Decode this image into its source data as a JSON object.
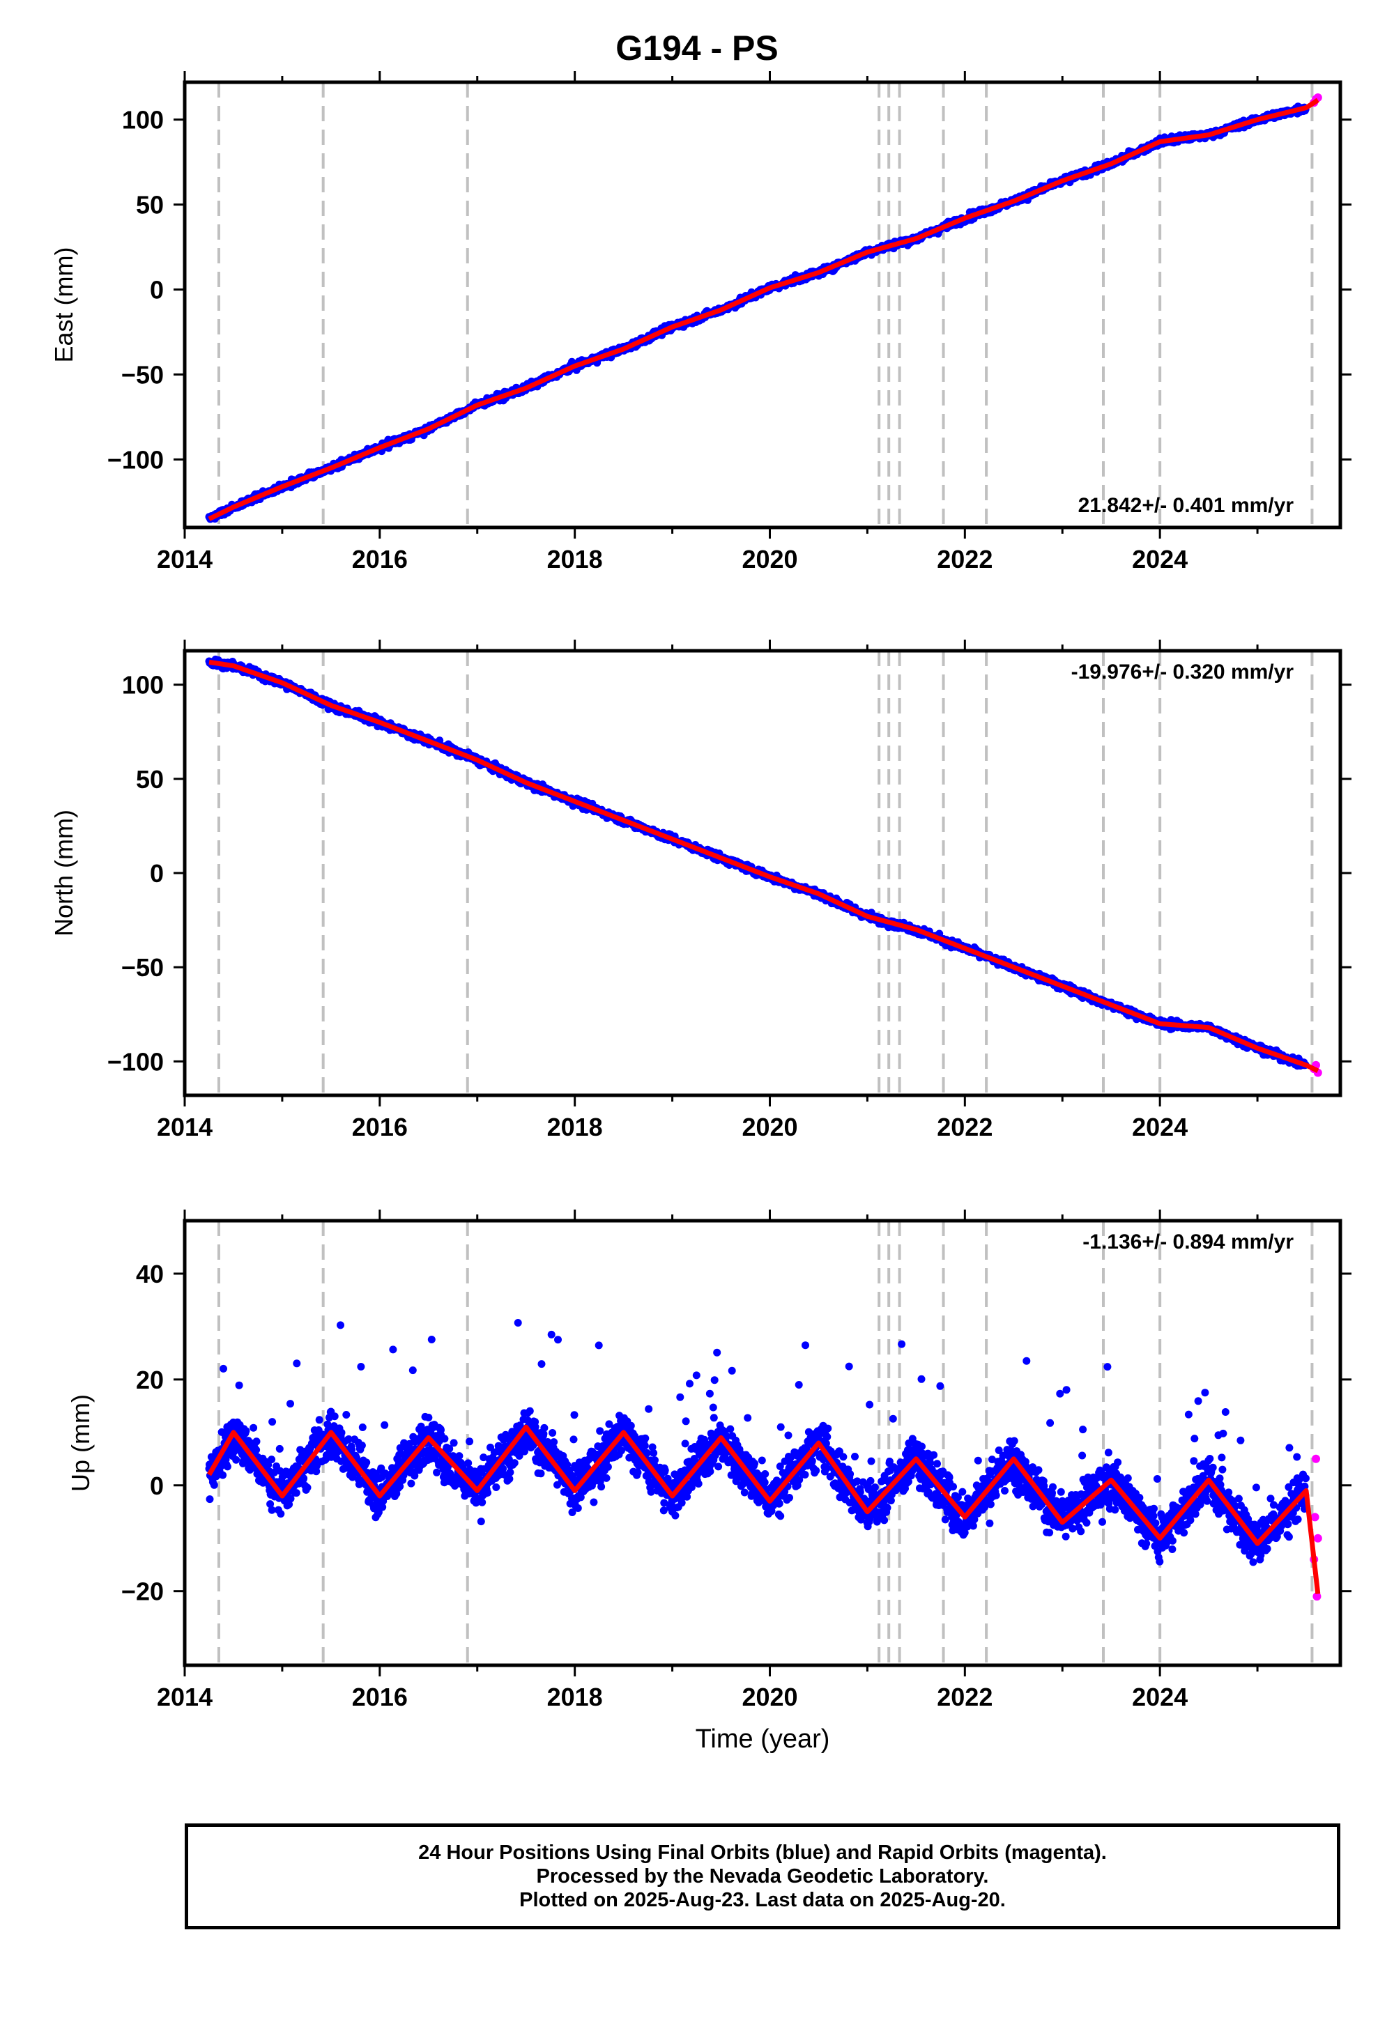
{
  "title": "G194 - PS",
  "footer": {
    "line1": "24 Hour Positions Using Final Orbits (blue) and Rapid Orbits (magenta).",
    "line2": "Processed by the Nevada Geodetic Laboratory.",
    "line3": "Plotted on 2025-Aug-23. Last data on 2025-Aug-20."
  },
  "colors": {
    "final_orbits": "#0000ff",
    "rapid_orbits": "#ff00ff",
    "model_fit": "#ff0000",
    "event_lines": "#c0c0c0"
  },
  "chart_data": [
    {
      "type": "scatter",
      "component": "East",
      "ylabel": "East (mm)",
      "xlabel": "",
      "xlim": [
        2014.0,
        2025.85
      ],
      "ylim": [
        -140,
        122
      ],
      "xticks": [
        2014,
        2016,
        2018,
        2020,
        2022,
        2024
      ],
      "yticks": [
        -100,
        -50,
        0,
        50,
        100
      ],
      "rate_label": "21.842+/- 0.401 mm/yr",
      "rate_position": "bottom-right",
      "event_lines": [
        2014.35,
        2015.42,
        2016.9,
        2021.12,
        2021.22,
        2021.33,
        2021.78,
        2022.22,
        2023.42,
        2024.0,
        2025.56
      ],
      "series": [
        {
          "name": "Final Orbits",
          "x": [
            2014.25,
            2014.5,
            2015.0,
            2015.5,
            2016.0,
            2016.5,
            2017.0,
            2017.5,
            2018.0,
            2018.5,
            2019.0,
            2019.5,
            2020.0,
            2020.5,
            2021.0,
            2021.5,
            2022.0,
            2022.5,
            2023.0,
            2023.5,
            2024.0,
            2024.5,
            2025.0,
            2025.5
          ],
          "values": [
            -135,
            -128,
            -116,
            -105,
            -93,
            -82,
            -68,
            -58,
            -45,
            -35,
            -22,
            -12,
            1,
            10,
            22,
            30,
            42,
            52,
            64,
            74,
            87,
            91,
            100,
            107
          ]
        },
        {
          "name": "Rapid Orbits",
          "x": [
            2025.58,
            2025.6,
            2025.62
          ],
          "values": [
            110,
            112,
            113
          ]
        }
      ]
    },
    {
      "type": "scatter",
      "component": "North",
      "ylabel": "North (mm)",
      "xlabel": "",
      "xlim": [
        2014.0,
        2025.85
      ],
      "ylim": [
        -118,
        118
      ],
      "xticks": [
        2014,
        2016,
        2018,
        2020,
        2022,
        2024
      ],
      "yticks": [
        -100,
        -50,
        0,
        50,
        100
      ],
      "rate_label": "-19.976+/- 0.320 mm/yr",
      "rate_position": "top-right",
      "event_lines": [
        2014.35,
        2015.42,
        2016.9,
        2021.12,
        2021.22,
        2021.33,
        2021.78,
        2022.22,
        2023.42,
        2024.0,
        2025.56
      ],
      "series": [
        {
          "name": "Final Orbits",
          "x": [
            2014.25,
            2014.5,
            2015.0,
            2015.5,
            2016.0,
            2016.5,
            2017.0,
            2017.5,
            2018.0,
            2018.5,
            2019.0,
            2019.5,
            2020.0,
            2020.5,
            2021.0,
            2021.5,
            2022.0,
            2022.5,
            2023.0,
            2023.5,
            2024.0,
            2024.5,
            2025.0,
            2025.5
          ],
          "values": [
            112,
            110,
            101,
            89,
            80,
            70,
            60,
            48,
            38,
            28,
            18,
            8,
            -2,
            -11,
            -23,
            -30,
            -40,
            -50,
            -60,
            -70,
            -80,
            -82,
            -93,
            -102
          ]
        },
        {
          "name": "Rapid Orbits",
          "x": [
            2025.58,
            2025.6,
            2025.62
          ],
          "values": [
            -104,
            -102,
            -106
          ]
        }
      ]
    },
    {
      "type": "scatter",
      "component": "Up",
      "ylabel": "Up (mm)",
      "xlabel": "Time (year)",
      "xlim": [
        2014.0,
        2025.85
      ],
      "ylim": [
        -34,
        50
      ],
      "xticks": [
        2014,
        2016,
        2018,
        2020,
        2022,
        2024
      ],
      "yticks": [
        -20,
        0,
        20,
        40
      ],
      "rate_label": "-1.136+/- 0.894 mm/yr",
      "rate_position": "top-right",
      "event_lines": [
        2014.35,
        2015.42,
        2016.9,
        2021.12,
        2021.22,
        2021.33,
        2021.78,
        2022.22,
        2023.42,
        2024.0,
        2025.56
      ],
      "annual_amplitude_mm": 6,
      "annual_peak_phase_year_fraction": 0.55,
      "series": [
        {
          "name": "Final Orbits",
          "x": [
            2014.25,
            2014.5,
            2015.0,
            2015.5,
            2016.0,
            2016.5,
            2017.0,
            2017.5,
            2018.0,
            2018.5,
            2019.0,
            2019.5,
            2020.0,
            2020.5,
            2021.0,
            2021.5,
            2022.0,
            2022.5,
            2023.0,
            2023.5,
            2024.0,
            2024.5,
            2025.0,
            2025.5
          ],
          "values": [
            2,
            10,
            -2,
            10,
            -2,
            9,
            -1,
            11,
            -1,
            10,
            -2,
            9,
            -3,
            8,
            -5,
            5,
            -6,
            5,
            -7,
            1,
            -10,
            1,
            -11,
            -1
          ]
        },
        {
          "name": "Rapid Orbits",
          "x": [
            2025.58,
            2025.59,
            2025.6,
            2025.61,
            2025.62
          ],
          "values": [
            -14,
            -6,
            5,
            -21,
            -10
          ]
        }
      ]
    }
  ]
}
